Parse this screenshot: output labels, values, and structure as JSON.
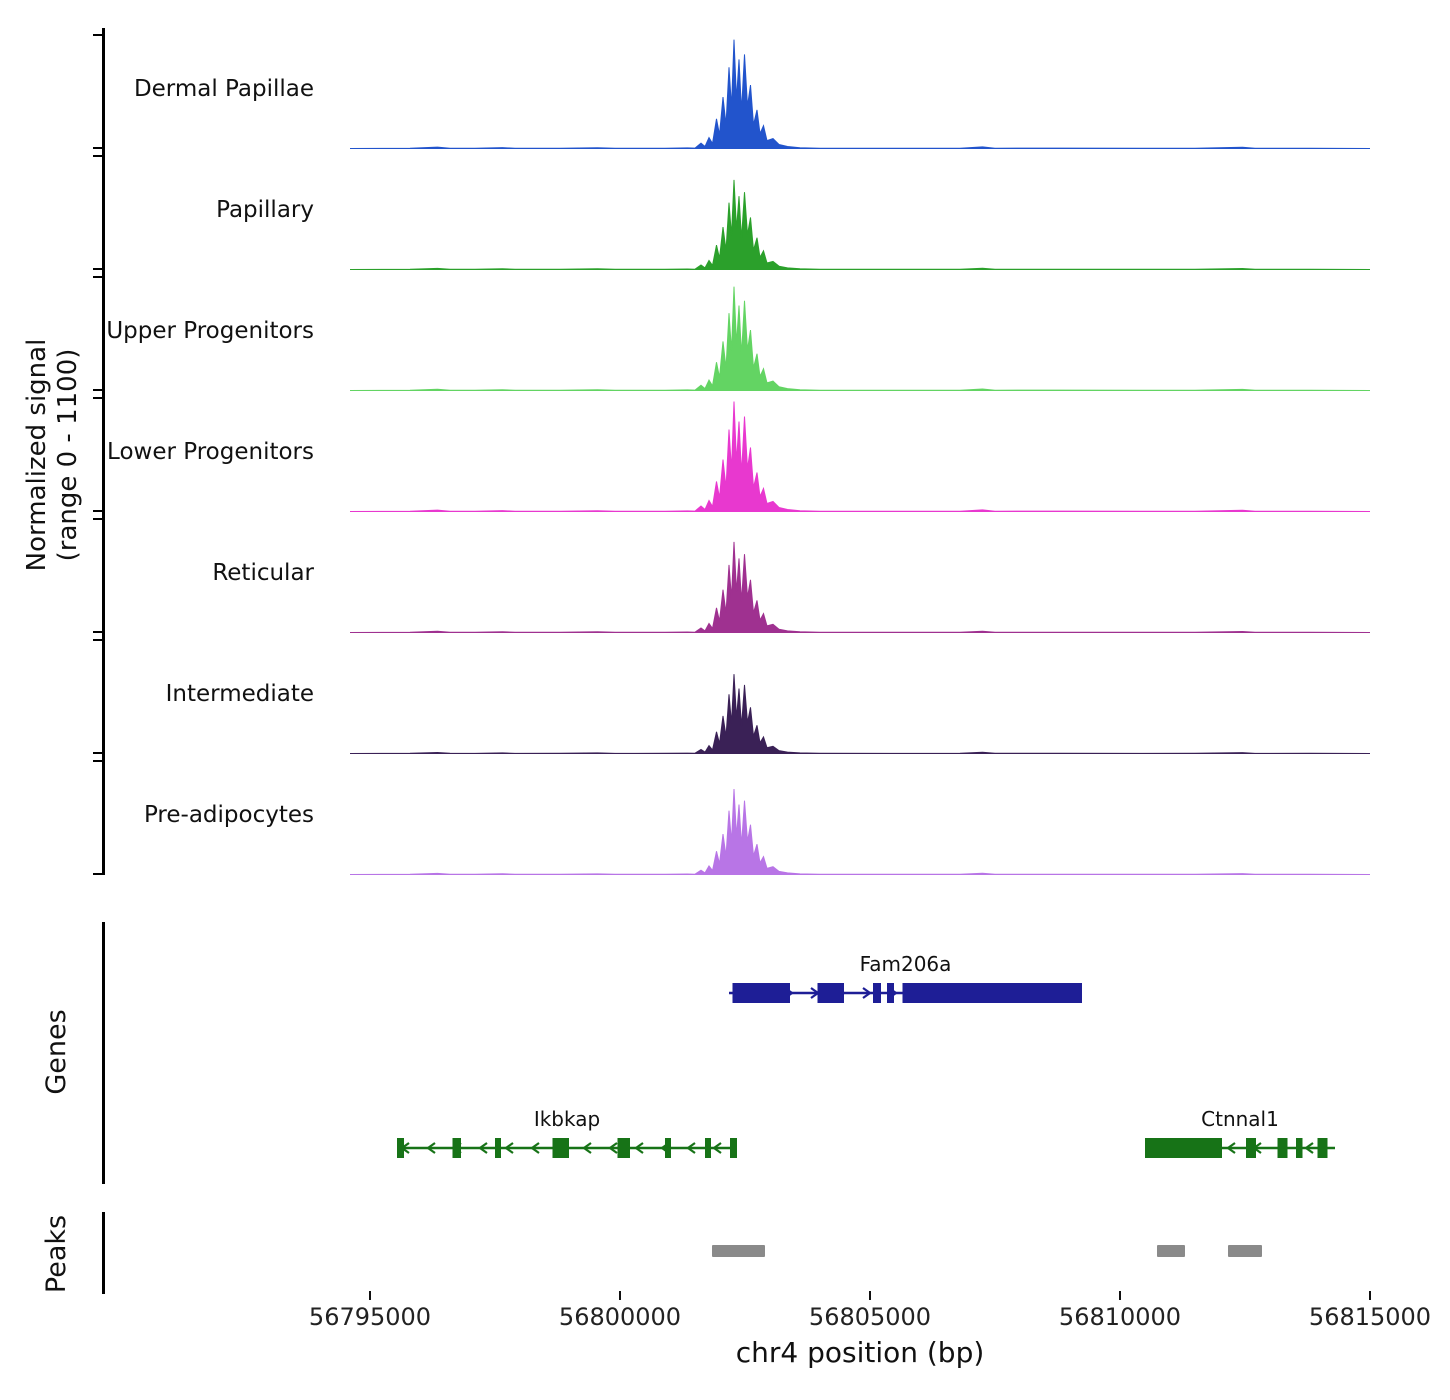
{
  "figure": {
    "ylabel_line1": "Normalized signal",
    "ylabel_line2": "(range 0 - 1100)",
    "xlabel": "chr4 position (bp)",
    "genes_section_label": "Genes",
    "peaks_section_label": "Peaks",
    "baseline_color": "#999999",
    "peak_color": "#8a8a8a"
  },
  "chart_data": {
    "type": "area",
    "title": "",
    "xlabel": "chr4 position (bp)",
    "ylabel": "Normalized signal (range 0 - 1100)",
    "x_axis": {
      "min": 56794600,
      "max": 56815000,
      "ticks": [
        56795000,
        56800000,
        56805000,
        56810000,
        56815000
      ]
    },
    "y_range_per_track": [
      0,
      1100
    ],
    "profile": [
      [
        56794600,
        0
      ],
      [
        56795800,
        3
      ],
      [
        56796350,
        14
      ],
      [
        56796600,
        3
      ],
      [
        56797100,
        2
      ],
      [
        56797650,
        9
      ],
      [
        56797900,
        2
      ],
      [
        56798800,
        3
      ],
      [
        56799550,
        8
      ],
      [
        56799900,
        2
      ],
      [
        56800900,
        3
      ],
      [
        56801350,
        6
      ],
      [
        56801500,
        4
      ],
      [
        56801620,
        55
      ],
      [
        56801700,
        20
      ],
      [
        56801780,
        110
      ],
      [
        56801850,
        50
      ],
      [
        56801930,
        300
      ],
      [
        56801990,
        140
      ],
      [
        56802060,
        520
      ],
      [
        56802120,
        240
      ],
      [
        56802180,
        820
      ],
      [
        56802230,
        420
      ],
      [
        56802280,
        1100
      ],
      [
        56802330,
        500
      ],
      [
        56802380,
        900
      ],
      [
        56802430,
        380
      ],
      [
        56802490,
        950
      ],
      [
        56802550,
        430
      ],
      [
        56802610,
        640
      ],
      [
        56802670,
        240
      ],
      [
        56802740,
        390
      ],
      [
        56802800,
        150
      ],
      [
        56802870,
        230
      ],
      [
        56802940,
        80
      ],
      [
        56803060,
        100
      ],
      [
        56803180,
        40
      ],
      [
        56803350,
        20
      ],
      [
        56803600,
        8
      ],
      [
        56804000,
        3
      ],
      [
        56805500,
        2
      ],
      [
        56806800,
        3
      ],
      [
        56807250,
        16
      ],
      [
        56807500,
        3
      ],
      [
        56808800,
        4
      ],
      [
        56810400,
        2
      ],
      [
        56811500,
        3
      ],
      [
        56812450,
        12
      ],
      [
        56812700,
        2
      ],
      [
        56813800,
        3
      ],
      [
        56815000,
        0
      ]
    ],
    "tracks": [
      {
        "label": "Dermal Papillae",
        "color": "#2254cc",
        "max_value": 1070
      },
      {
        "label": "Papillary",
        "color": "#2ba02b",
        "max_value": 880
      },
      {
        "label": "Upper Progenitors",
        "color": "#63d463",
        "max_value": 1020
      },
      {
        "label": "Lower Progenitors",
        "color": "#e838cf",
        "max_value": 1080
      },
      {
        "label": "Reticular",
        "color": "#9f3190",
        "max_value": 890
      },
      {
        "label": "Intermediate",
        "color": "#3a2156",
        "max_value": 780
      },
      {
        "label": "Pre-adipocytes",
        "color": "#b875e6",
        "max_value": 840
      }
    ],
    "genes": [
      {
        "name": "Fam206a",
        "color": "#1e1e96",
        "strand": "+",
        "row": 0,
        "start": 56802180,
        "end": 56809240,
        "exons": [
          [
            56802250,
            56803400
          ],
          [
            56803950,
            56804480
          ],
          [
            56805060,
            56805220
          ],
          [
            56805340,
            56805480
          ],
          [
            56805650,
            56809240
          ]
        ]
      },
      {
        "name": "Ikbkap",
        "color": "#177317",
        "strand": "-",
        "row": 1,
        "start": 56795540,
        "end": 56802340,
        "exons": [
          [
            56795540,
            56795680
          ],
          [
            56796650,
            56796820
          ],
          [
            56797500,
            56797620
          ],
          [
            56798650,
            56798980
          ],
          [
            56799950,
            56800200
          ],
          [
            56800900,
            56801020
          ],
          [
            56801700,
            56801820
          ],
          [
            56802200,
            56802340
          ]
        ]
      },
      {
        "name": "Ctnnal1",
        "color": "#177317",
        "strand": "-",
        "row": 1,
        "start": 56810500,
        "end": 56814300,
        "exons": [
          [
            56810500,
            56812040
          ],
          [
            56812520,
            56812720
          ],
          [
            56813150,
            56813350
          ],
          [
            56813520,
            56813650
          ],
          [
            56813950,
            56814150
          ]
        ]
      }
    ],
    "peaks": [
      [
        56801840,
        56802900
      ],
      [
        56810740,
        56811300
      ],
      [
        56812160,
        56812840
      ]
    ]
  }
}
